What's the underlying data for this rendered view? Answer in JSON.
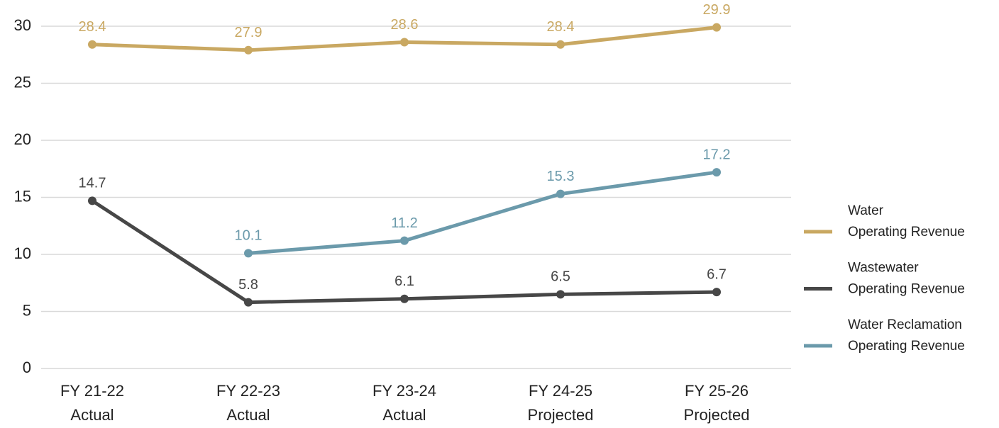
{
  "chart_data": {
    "type": "line",
    "categories": [
      [
        "FY 21-22",
        "Actual"
      ],
      [
        "FY 22-23",
        "Actual"
      ],
      [
        "FY 23-24",
        "Actual"
      ],
      [
        "FY 24-25",
        "Projected"
      ],
      [
        "FY 25-26",
        "Projected"
      ]
    ],
    "series": [
      {
        "name": [
          "Water",
          "Operating Revenue"
        ],
        "color": "#c9a862",
        "values": [
          28.4,
          27.9,
          28.6,
          28.4,
          29.9
        ]
      },
      {
        "name": [
          "Wastewater",
          "Operating Revenue"
        ],
        "color": "#474747",
        "values": [
          14.7,
          5.8,
          6.1,
          6.5,
          6.7
        ]
      },
      {
        "name": [
          "Water Reclamation",
          "Operating Revenue"
        ],
        "color": "#6b9aab",
        "values": [
          null,
          10.1,
          11.2,
          15.3,
          17.2
        ]
      }
    ],
    "ylim": [
      0,
      30
    ],
    "yticks": [
      0,
      5,
      10,
      15,
      20,
      25,
      30
    ],
    "grid": true,
    "legend": "right"
  }
}
